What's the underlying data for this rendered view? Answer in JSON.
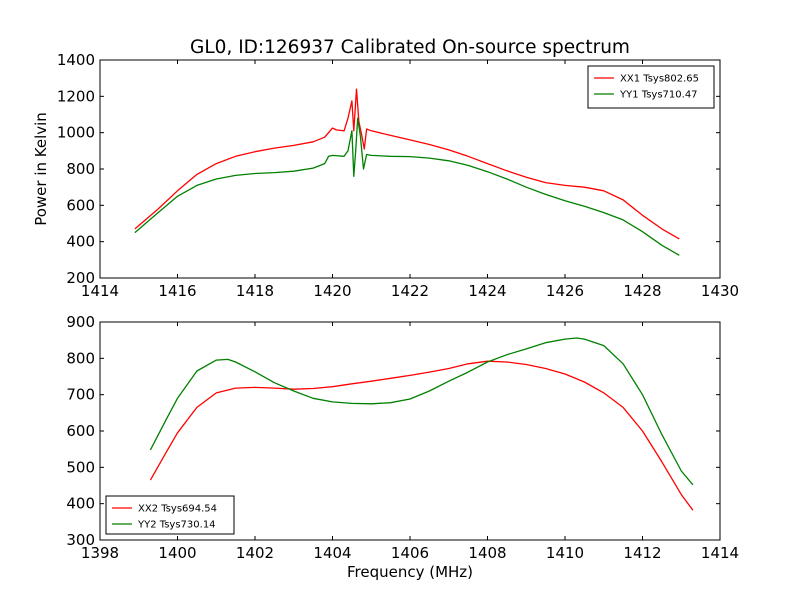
{
  "figure": {
    "title": "GL0, ID:126937 Calibrated On-source spectrum"
  },
  "chart_data": [
    {
      "type": "line",
      "title": "GL0, ID:126937 Calibrated On-source spectrum",
      "xlabel": "",
      "ylabel": "Power in Kelvin",
      "xlim": [
        1414,
        1430
      ],
      "ylim": [
        200,
        1400
      ],
      "x_ticks": [
        "1414",
        "1416",
        "1418",
        "1420",
        "1422",
        "1424",
        "1426",
        "1428",
        "1430"
      ],
      "y_ticks": [
        "200",
        "400",
        "600",
        "800",
        "1000",
        "1200",
        "1400"
      ],
      "legend": {
        "position": "top-right"
      },
      "series": [
        {
          "name": "XX1 Tsys802.65",
          "color": "#ff0000",
          "points": [
            [
              1414.9,
              470
            ],
            [
              1415.5,
              580
            ],
            [
              1416.0,
              680
            ],
            [
              1416.5,
              770
            ],
            [
              1417.0,
              830
            ],
            [
              1417.5,
              870
            ],
            [
              1418.0,
              895
            ],
            [
              1418.5,
              915
            ],
            [
              1419.0,
              930
            ],
            [
              1419.5,
              950
            ],
            [
              1419.8,
              975
            ],
            [
              1420.0,
              1025
            ],
            [
              1420.1,
              1015
            ],
            [
              1420.3,
              1010
            ],
            [
              1420.4,
              1080
            ],
            [
              1420.5,
              1175
            ],
            [
              1420.55,
              1010
            ],
            [
              1420.62,
              1240
            ],
            [
              1420.68,
              1060
            ],
            [
              1420.75,
              990
            ],
            [
              1420.82,
              910
            ],
            [
              1420.88,
              1020
            ],
            [
              1421.0,
              1010
            ],
            [
              1421.5,
              985
            ],
            [
              1422.0,
              960
            ],
            [
              1422.5,
              935
            ],
            [
              1423.0,
              905
            ],
            [
              1423.5,
              870
            ],
            [
              1424.0,
              830
            ],
            [
              1424.5,
              790
            ],
            [
              1425.0,
              755
            ],
            [
              1425.5,
              725
            ],
            [
              1426.0,
              710
            ],
            [
              1426.5,
              700
            ],
            [
              1427.0,
              680
            ],
            [
              1427.5,
              630
            ],
            [
              1428.0,
              545
            ],
            [
              1428.5,
              470
            ],
            [
              1428.95,
              415
            ]
          ]
        },
        {
          "name": "YY1 Tsys710.47",
          "color": "#008000",
          "points": [
            [
              1414.9,
              450
            ],
            [
              1415.5,
              560
            ],
            [
              1416.0,
              650
            ],
            [
              1416.5,
              710
            ],
            [
              1417.0,
              745
            ],
            [
              1417.5,
              765
            ],
            [
              1418.0,
              775
            ],
            [
              1418.5,
              780
            ],
            [
              1419.0,
              788
            ],
            [
              1419.5,
              805
            ],
            [
              1419.8,
              830
            ],
            [
              1419.9,
              870
            ],
            [
              1420.0,
              875
            ],
            [
              1420.3,
              870
            ],
            [
              1420.4,
              900
            ],
            [
              1420.5,
              1010
            ],
            [
              1420.55,
              760
            ],
            [
              1420.6,
              900
            ],
            [
              1420.65,
              1080
            ],
            [
              1420.72,
              980
            ],
            [
              1420.8,
              800
            ],
            [
              1420.88,
              880
            ],
            [
              1421.0,
              875
            ],
            [
              1421.5,
              870
            ],
            [
              1422.0,
              868
            ],
            [
              1422.5,
              860
            ],
            [
              1423.0,
              845
            ],
            [
              1423.5,
              820
            ],
            [
              1424.0,
              785
            ],
            [
              1424.5,
              745
            ],
            [
              1425.0,
              700
            ],
            [
              1425.5,
              660
            ],
            [
              1426.0,
              625
            ],
            [
              1426.5,
              595
            ],
            [
              1427.0,
              560
            ],
            [
              1427.5,
              520
            ],
            [
              1428.0,
              455
            ],
            [
              1428.5,
              380
            ],
            [
              1428.95,
              325
            ]
          ]
        }
      ]
    },
    {
      "type": "line",
      "title": "",
      "xlabel": "Frequency (MHz)",
      "ylabel": "",
      "xlim": [
        1398,
        1414
      ],
      "ylim": [
        300,
        900
      ],
      "x_ticks": [
        "1398",
        "1400",
        "1402",
        "1404",
        "1406",
        "1408",
        "1410",
        "1412",
        "1414"
      ],
      "y_ticks": [
        "300",
        "400",
        "500",
        "600",
        "700",
        "800",
        "900"
      ],
      "legend": {
        "position": "bottom-left"
      },
      "series": [
        {
          "name": "XX2 Tsys694.54",
          "color": "#ff0000",
          "points": [
            [
              1399.3,
              465
            ],
            [
              1399.7,
              540
            ],
            [
              1400.0,
              595
            ],
            [
              1400.5,
              665
            ],
            [
              1401.0,
              705
            ],
            [
              1401.5,
              718
            ],
            [
              1402.0,
              720
            ],
            [
              1402.5,
              718
            ],
            [
              1403.0,
              715
            ],
            [
              1403.5,
              717
            ],
            [
              1404.0,
              722
            ],
            [
              1404.5,
              730
            ],
            [
              1405.0,
              737
            ],
            [
              1405.5,
              745
            ],
            [
              1406.0,
              753
            ],
            [
              1406.5,
              762
            ],
            [
              1407.0,
              772
            ],
            [
              1407.5,
              785
            ],
            [
              1408.0,
              792
            ],
            [
              1408.5,
              790
            ],
            [
              1409.0,
              783
            ],
            [
              1409.5,
              772
            ],
            [
              1410.0,
              757
            ],
            [
              1410.5,
              735
            ],
            [
              1411.0,
              705
            ],
            [
              1411.5,
              665
            ],
            [
              1412.0,
              600
            ],
            [
              1412.5,
              515
            ],
            [
              1413.0,
              425
            ],
            [
              1413.3,
              382
            ]
          ]
        },
        {
          "name": "YY2 Tsys730.14",
          "color": "#008000",
          "points": [
            [
              1399.3,
              548
            ],
            [
              1399.7,
              630
            ],
            [
              1400.0,
              690
            ],
            [
              1400.5,
              765
            ],
            [
              1401.0,
              795
            ],
            [
              1401.3,
              797
            ],
            [
              1401.5,
              790
            ],
            [
              1402.0,
              763
            ],
            [
              1402.5,
              733
            ],
            [
              1403.0,
              710
            ],
            [
              1403.5,
              690
            ],
            [
              1404.0,
              680
            ],
            [
              1404.5,
              676
            ],
            [
              1405.0,
              675
            ],
            [
              1405.5,
              678
            ],
            [
              1406.0,
              688
            ],
            [
              1406.5,
              710
            ],
            [
              1407.0,
              737
            ],
            [
              1407.5,
              762
            ],
            [
              1408.0,
              790
            ],
            [
              1408.5,
              810
            ],
            [
              1409.0,
              826
            ],
            [
              1409.5,
              843
            ],
            [
              1410.0,
              853
            ],
            [
              1410.3,
              856
            ],
            [
              1410.5,
              853
            ],
            [
              1411.0,
              835
            ],
            [
              1411.5,
              785
            ],
            [
              1412.0,
              700
            ],
            [
              1412.5,
              590
            ],
            [
              1413.0,
              490
            ],
            [
              1413.3,
              452
            ]
          ]
        }
      ]
    }
  ]
}
